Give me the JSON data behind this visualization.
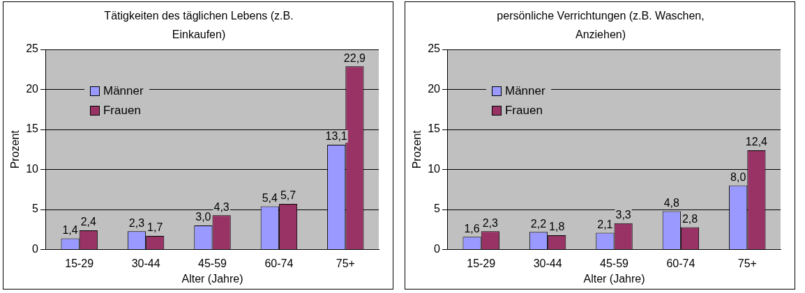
{
  "chart_data": [
    {
      "type": "bar",
      "title": "Tätigkeiten des täglichen Lebens (z.B. Einkaufen)",
      "xlabel": "Alter (Jahre)",
      "ylabel": "Prozent",
      "categories": [
        "15-29",
        "30-44",
        "45-59",
        "60-74",
        "75+"
      ],
      "series": [
        {
          "name": "Männer",
          "color": "#9999ff",
          "values": [
            1.4,
            2.3,
            3.0,
            5.4,
            13.1
          ],
          "value_labels": [
            "1,4",
            "2,3",
            "3,0",
            "5,4",
            "13,1"
          ]
        },
        {
          "name": "Frauen",
          "color": "#993366",
          "values": [
            2.4,
            1.7,
            4.3,
            5.7,
            22.9
          ],
          "value_labels": [
            "2,4",
            "1,7",
            "4,3",
            "5,7",
            "22,9"
          ]
        }
      ],
      "ylim": [
        0,
        25
      ],
      "yticks": [
        0,
        5,
        10,
        15,
        20,
        25
      ],
      "grid": "y",
      "legend": "top left"
    },
    {
      "type": "bar",
      "title": "persönliche Verrichtungen (z.B. Waschen, Anziehen)",
      "xlabel": "Alter (Jahre)",
      "ylabel": "Prozent",
      "categories": [
        "15-29",
        "30-44",
        "45-59",
        "60-74",
        "75+"
      ],
      "series": [
        {
          "name": "Männer",
          "color": "#9999ff",
          "values": [
            1.6,
            2.2,
            2.1,
            4.8,
            8.0
          ],
          "value_labels": [
            "1,6",
            "2,2",
            "2,1",
            "4,8",
            "8,0"
          ]
        },
        {
          "name": "Frauen",
          "color": "#993366",
          "values": [
            2.3,
            1.8,
            3.3,
            2.8,
            12.4
          ],
          "value_labels": [
            "2,3",
            "1,8",
            "3,3",
            "2,8",
            "12,4"
          ]
        }
      ],
      "ylim": [
        0,
        25
      ],
      "yticks": [
        0,
        5,
        10,
        15,
        20,
        25
      ],
      "grid": "y",
      "legend": "top left"
    }
  ]
}
